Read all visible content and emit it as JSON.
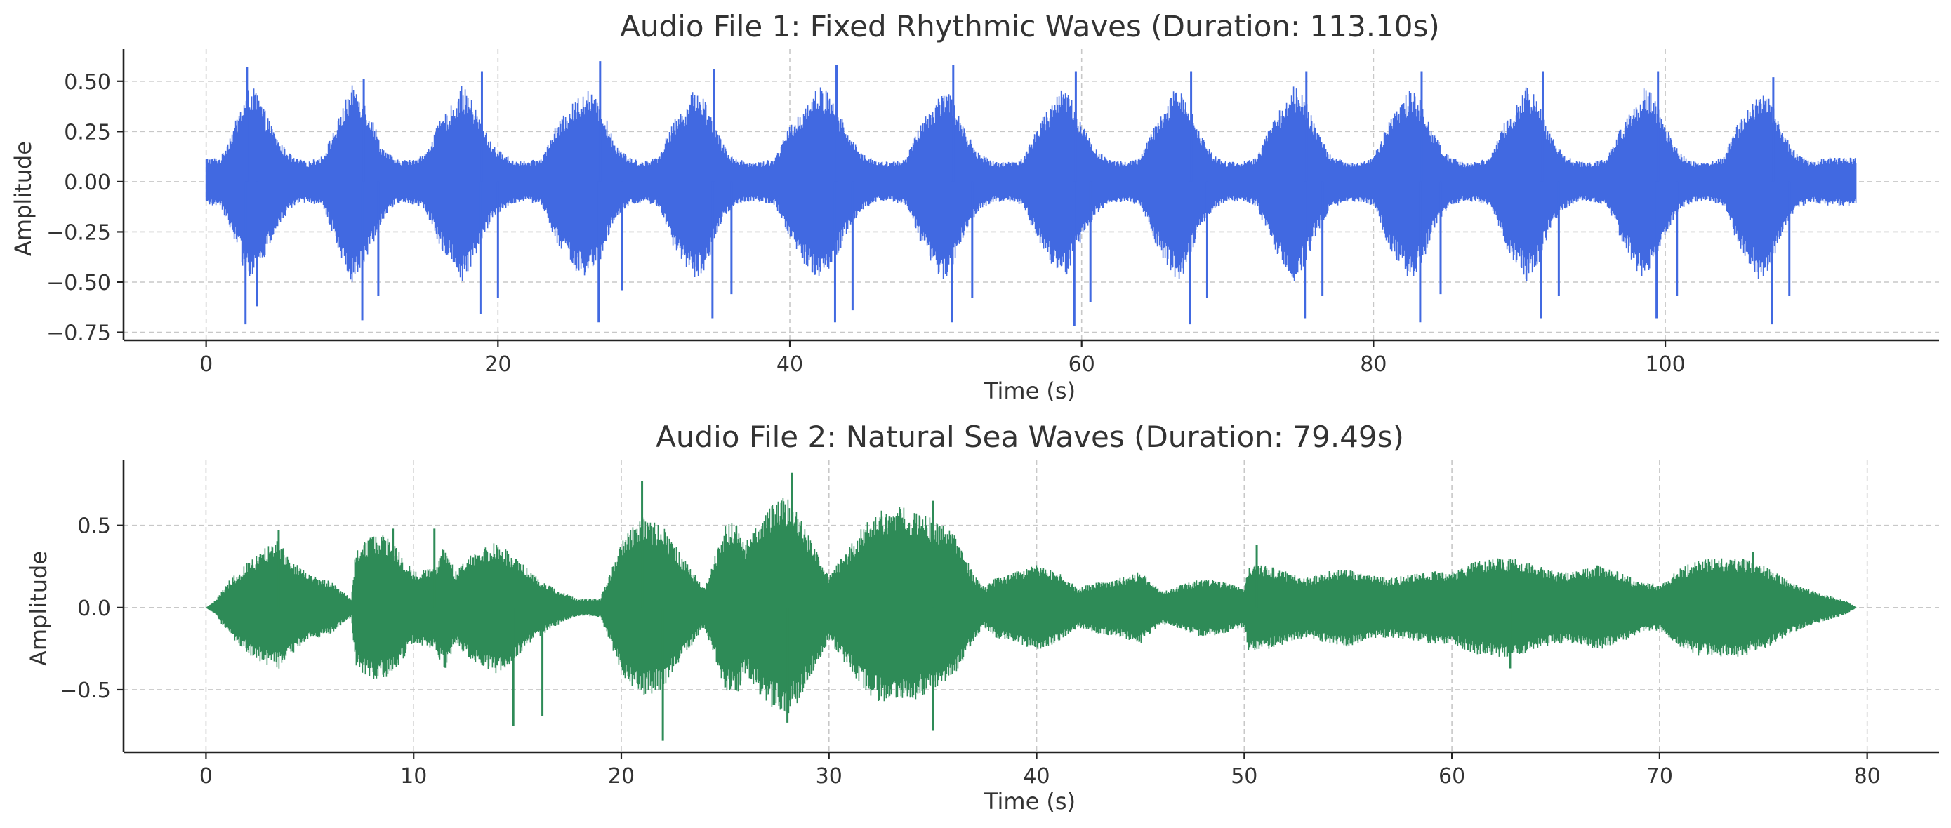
{
  "chart_data": [
    {
      "type": "line",
      "title": "Audio File 1: Fixed Rhythmic Waves (Duration: 113.10s)",
      "xlabel": "Time (s)",
      "ylabel": "Amplitude",
      "xlim": [
        -5.66,
        118.76
      ],
      "ylim": [
        -0.79,
        0.66
      ],
      "xticks": [
        0,
        20,
        40,
        60,
        80,
        100
      ],
      "xtick_labels": [
        "0",
        "20",
        "40",
        "60",
        "80",
        "100"
      ],
      "yticks": [
        0.5,
        0.25,
        0.0,
        -0.25,
        -0.5,
        -0.75
      ],
      "ytick_labels": [
        "0.50",
        "0.25",
        "0.00",
        "−0.25",
        "−0.50",
        "−0.75"
      ],
      "grid": true,
      "color": "#4169E1",
      "series": [
        {
          "x": [
            0,
            1,
            2,
            2.5,
            3,
            3.5,
            4,
            5,
            6,
            7,
            8,
            9,
            9.5,
            10,
            10.5,
            11,
            11.5,
            12,
            13,
            14,
            15,
            16,
            17,
            17.5,
            18,
            18.5,
            19,
            19.5,
            20,
            21,
            22,
            23,
            24,
            25,
            26,
            26.5,
            27,
            27.5,
            28,
            29,
            30,
            31,
            32,
            33,
            33.5,
            34,
            34.5,
            35,
            35.5,
            36,
            37,
            38,
            39,
            40,
            41,
            42,
            42.5,
            43,
            43.5,
            44,
            45,
            46,
            47,
            48,
            49,
            50,
            50.5,
            51,
            51.5,
            52,
            53,
            54,
            55,
            56,
            57,
            58,
            58.5,
            59,
            59.5,
            60,
            61,
            62,
            63,
            64,
            65,
            66,
            66.5,
            67,
            67.5,
            68,
            69,
            70,
            71,
            72,
            73,
            74,
            74.5,
            75,
            75.5,
            76,
            77,
            78,
            79,
            80,
            81,
            82,
            82.5,
            83,
            83.5,
            84,
            85,
            86,
            87,
            88,
            89,
            90,
            90.5,
            91,
            91.5,
            92,
            93,
            94,
            95,
            96,
            97,
            98,
            98.5,
            99,
            99.5,
            100,
            101,
            102,
            103,
            104,
            105,
            106,
            106.5,
            107,
            107.5,
            108,
            109,
            110,
            111,
            112,
            113.1
          ],
          "upper": [
            0.12,
            0.12,
            0.3,
            0.4,
            0.48,
            0.45,
            0.36,
            0.2,
            0.12,
            0.1,
            0.13,
            0.3,
            0.4,
            0.48,
            0.45,
            0.38,
            0.3,
            0.18,
            0.11,
            0.11,
            0.14,
            0.3,
            0.4,
            0.48,
            0.44,
            0.36,
            0.28,
            0.2,
            0.16,
            0.11,
            0.1,
            0.12,
            0.28,
            0.38,
            0.47,
            0.44,
            0.38,
            0.3,
            0.2,
            0.12,
            0.1,
            0.13,
            0.3,
            0.4,
            0.47,
            0.44,
            0.36,
            0.26,
            0.18,
            0.13,
            0.1,
            0.1,
            0.12,
            0.28,
            0.38,
            0.48,
            0.46,
            0.4,
            0.33,
            0.24,
            0.14,
            0.1,
            0.1,
            0.12,
            0.3,
            0.4,
            0.48,
            0.44,
            0.36,
            0.26,
            0.14,
            0.1,
            0.1,
            0.12,
            0.28,
            0.4,
            0.48,
            0.46,
            0.38,
            0.3,
            0.16,
            0.11,
            0.1,
            0.12,
            0.28,
            0.4,
            0.49,
            0.45,
            0.36,
            0.26,
            0.14,
            0.1,
            0.1,
            0.12,
            0.3,
            0.4,
            0.48,
            0.46,
            0.38,
            0.28,
            0.14,
            0.1,
            0.1,
            0.12,
            0.3,
            0.4,
            0.48,
            0.44,
            0.36,
            0.26,
            0.14,
            0.1,
            0.1,
            0.12,
            0.3,
            0.4,
            0.48,
            0.44,
            0.36,
            0.26,
            0.14,
            0.1,
            0.1,
            0.12,
            0.28,
            0.4,
            0.48,
            0.46,
            0.38,
            0.28,
            0.14,
            0.1,
            0.1,
            0.12,
            0.3,
            0.4,
            0.46,
            0.44,
            0.36,
            0.26,
            0.14,
            0.1,
            0.12,
            0.12,
            0.12
          ],
          "lower": [
            -0.12,
            -0.12,
            -0.3,
            -0.42,
            -0.48,
            -0.45,
            -0.38,
            -0.22,
            -0.12,
            -0.1,
            -0.13,
            -0.32,
            -0.44,
            -0.5,
            -0.46,
            -0.38,
            -0.3,
            -0.2,
            -0.11,
            -0.11,
            -0.14,
            -0.32,
            -0.44,
            -0.5,
            -0.46,
            -0.38,
            -0.28,
            -0.2,
            -0.16,
            -0.11,
            -0.1,
            -0.12,
            -0.3,
            -0.42,
            -0.5,
            -0.46,
            -0.4,
            -0.3,
            -0.2,
            -0.12,
            -0.1,
            -0.13,
            -0.32,
            -0.44,
            -0.5,
            -0.46,
            -0.38,
            -0.26,
            -0.18,
            -0.13,
            -0.1,
            -0.1,
            -0.12,
            -0.3,
            -0.42,
            -0.5,
            -0.46,
            -0.4,
            -0.33,
            -0.24,
            -0.14,
            -0.1,
            -0.1,
            -0.12,
            -0.32,
            -0.44,
            -0.5,
            -0.46,
            -0.38,
            -0.26,
            -0.14,
            -0.1,
            -0.1,
            -0.12,
            -0.3,
            -0.44,
            -0.5,
            -0.46,
            -0.38,
            -0.3,
            -0.16,
            -0.11,
            -0.1,
            -0.12,
            -0.3,
            -0.44,
            -0.5,
            -0.46,
            -0.38,
            -0.26,
            -0.14,
            -0.1,
            -0.1,
            -0.12,
            -0.32,
            -0.44,
            -0.5,
            -0.46,
            -0.38,
            -0.28,
            -0.14,
            -0.1,
            -0.1,
            -0.12,
            -0.32,
            -0.44,
            -0.5,
            -0.46,
            -0.38,
            -0.26,
            -0.14,
            -0.1,
            -0.1,
            -0.12,
            -0.32,
            -0.44,
            -0.5,
            -0.46,
            -0.38,
            -0.26,
            -0.14,
            -0.1,
            -0.1,
            -0.12,
            -0.3,
            -0.44,
            -0.5,
            -0.46,
            -0.38,
            -0.28,
            -0.14,
            -0.1,
            -0.1,
            -0.12,
            -0.32,
            -0.44,
            -0.5,
            -0.46,
            -0.38,
            -0.26,
            -0.14,
            -0.1,
            -0.12,
            -0.12,
            -0.12
          ]
        }
      ],
      "spikes": [
        {
          "x": 2.8,
          "y": 0.57
        },
        {
          "x": 2.7,
          "y": -0.71
        },
        {
          "x": 3.5,
          "y": -0.62
        },
        {
          "x": 10.8,
          "y": 0.51
        },
        {
          "x": 10.7,
          "y": -0.69
        },
        {
          "x": 11.8,
          "y": -0.57
        },
        {
          "x": 18.9,
          "y": 0.55
        },
        {
          "x": 18.8,
          "y": -0.66
        },
        {
          "x": 20.0,
          "y": -0.58
        },
        {
          "x": 27.0,
          "y": 0.6
        },
        {
          "x": 26.9,
          "y": -0.7
        },
        {
          "x": 28.5,
          "y": -0.54
        },
        {
          "x": 34.8,
          "y": 0.56
        },
        {
          "x": 34.7,
          "y": -0.68
        },
        {
          "x": 36.0,
          "y": -0.56
        },
        {
          "x": 43.2,
          "y": 0.58
        },
        {
          "x": 43.1,
          "y": -0.7
        },
        {
          "x": 44.3,
          "y": -0.64
        },
        {
          "x": 51.2,
          "y": 0.58
        },
        {
          "x": 51.1,
          "y": -0.7
        },
        {
          "x": 52.5,
          "y": -0.58
        },
        {
          "x": 59.6,
          "y": 0.55
        },
        {
          "x": 59.5,
          "y": -0.72
        },
        {
          "x": 60.6,
          "y": -0.6
        },
        {
          "x": 67.5,
          "y": 0.55
        },
        {
          "x": 67.4,
          "y": -0.71
        },
        {
          "x": 68.6,
          "y": -0.58
        },
        {
          "x": 75.4,
          "y": 0.55
        },
        {
          "x": 75.3,
          "y": -0.68
        },
        {
          "x": 76.5,
          "y": -0.57
        },
        {
          "x": 83.3,
          "y": 0.55
        },
        {
          "x": 83.2,
          "y": -0.7
        },
        {
          "x": 84.6,
          "y": -0.56
        },
        {
          "x": 91.6,
          "y": 0.55
        },
        {
          "x": 91.5,
          "y": -0.68
        },
        {
          "x": 92.7,
          "y": -0.57
        },
        {
          "x": 99.5,
          "y": 0.55
        },
        {
          "x": 99.4,
          "y": -0.68
        },
        {
          "x": 100.8,
          "y": -0.57
        },
        {
          "x": 107.4,
          "y": 0.52
        },
        {
          "x": 107.3,
          "y": -0.71
        },
        {
          "x": 108.5,
          "y": -0.57
        }
      ]
    },
    {
      "type": "line",
      "title": "Audio File 2: Natural Sea Waves (Duration: 79.49s)",
      "xlabel": "Time (s)",
      "ylabel": "Amplitude",
      "xlim": [
        -3.97,
        83.46
      ],
      "ylim": [
        -0.88,
        0.9
      ],
      "xticks": [
        0,
        10,
        20,
        30,
        40,
        50,
        60,
        70,
        80
      ],
      "xtick_labels": [
        "0",
        "10",
        "20",
        "30",
        "40",
        "50",
        "60",
        "70",
        "80"
      ],
      "yticks": [
        0.5,
        0.0,
        -0.5
      ],
      "ytick_labels": [
        "0.5",
        "0.0",
        "−0.5"
      ],
      "grid": true,
      "color": "#2E8B57",
      "series": [
        {
          "x": [
            0,
            0.5,
            1,
            2,
            3,
            3.5,
            4,
            5,
            6,
            7,
            7.2,
            7.5,
            8,
            8.5,
            9,
            10,
            11,
            11.5,
            12,
            13,
            14,
            15,
            16,
            17,
            18,
            19,
            20,
            20.5,
            21,
            22,
            23,
            24,
            25,
            25.5,
            26,
            27,
            28,
            28.5,
            29,
            30,
            31,
            32,
            33,
            34,
            35,
            36,
            37,
            37.5,
            38,
            39,
            40,
            41,
            42,
            43,
            44,
            45,
            46,
            47,
            48,
            49,
            50,
            50.2,
            51,
            52,
            53,
            54,
            55,
            56,
            57,
            58,
            59,
            60,
            61,
            62,
            63,
            64,
            65,
            66,
            67,
            68,
            69,
            70,
            71,
            72,
            73,
            74,
            75,
            76,
            77,
            78,
            79,
            79.49
          ],
          "upper": [
            0.0,
            0.05,
            0.15,
            0.28,
            0.38,
            0.42,
            0.3,
            0.2,
            0.16,
            0.06,
            0.35,
            0.4,
            0.44,
            0.45,
            0.4,
            0.22,
            0.25,
            0.38,
            0.22,
            0.35,
            0.4,
            0.3,
            0.18,
            0.1,
            0.05,
            0.06,
            0.4,
            0.5,
            0.55,
            0.5,
            0.3,
            0.12,
            0.5,
            0.55,
            0.4,
            0.62,
            0.68,
            0.6,
            0.45,
            0.2,
            0.38,
            0.56,
            0.62,
            0.6,
            0.55,
            0.45,
            0.2,
            0.12,
            0.18,
            0.22,
            0.26,
            0.22,
            0.12,
            0.16,
            0.18,
            0.22,
            0.1,
            0.14,
            0.18,
            0.16,
            0.12,
            0.26,
            0.26,
            0.22,
            0.18,
            0.22,
            0.24,
            0.2,
            0.18,
            0.2,
            0.22,
            0.22,
            0.28,
            0.3,
            0.3,
            0.26,
            0.22,
            0.22,
            0.26,
            0.22,
            0.16,
            0.14,
            0.24,
            0.3,
            0.3,
            0.3,
            0.26,
            0.18,
            0.12,
            0.08,
            0.04,
            0.0
          ],
          "lower": [
            0.0,
            -0.05,
            -0.15,
            -0.28,
            -0.36,
            -0.38,
            -0.3,
            -0.2,
            -0.16,
            -0.06,
            -0.35,
            -0.42,
            -0.44,
            -0.44,
            -0.4,
            -0.22,
            -0.25,
            -0.38,
            -0.22,
            -0.35,
            -0.42,
            -0.3,
            -0.18,
            -0.1,
            -0.05,
            -0.06,
            -0.4,
            -0.5,
            -0.55,
            -0.5,
            -0.3,
            -0.12,
            -0.5,
            -0.55,
            -0.4,
            -0.6,
            -0.66,
            -0.58,
            -0.45,
            -0.2,
            -0.38,
            -0.55,
            -0.6,
            -0.58,
            -0.52,
            -0.42,
            -0.2,
            -0.12,
            -0.18,
            -0.22,
            -0.26,
            -0.22,
            -0.12,
            -0.16,
            -0.18,
            -0.22,
            -0.1,
            -0.14,
            -0.18,
            -0.16,
            -0.12,
            -0.26,
            -0.26,
            -0.22,
            -0.18,
            -0.22,
            -0.24,
            -0.2,
            -0.18,
            -0.2,
            -0.22,
            -0.22,
            -0.28,
            -0.3,
            -0.3,
            -0.26,
            -0.22,
            -0.22,
            -0.26,
            -0.22,
            -0.16,
            -0.14,
            -0.24,
            -0.3,
            -0.3,
            -0.3,
            -0.26,
            -0.18,
            -0.12,
            -0.08,
            -0.04,
            0.0
          ]
        }
      ],
      "spikes": [
        {
          "x": 3.5,
          "y": 0.47
        },
        {
          "x": 9.0,
          "y": 0.48
        },
        {
          "x": 11.0,
          "y": 0.48
        },
        {
          "x": 14.8,
          "y": -0.72
        },
        {
          "x": 16.2,
          "y": -0.66
        },
        {
          "x": 21.0,
          "y": 0.77
        },
        {
          "x": 22.0,
          "y": -0.81
        },
        {
          "x": 28.2,
          "y": 0.82
        },
        {
          "x": 28.0,
          "y": -0.7
        },
        {
          "x": 35.0,
          "y": 0.65
        },
        {
          "x": 35.0,
          "y": -0.75
        },
        {
          "x": 50.6,
          "y": 0.38
        },
        {
          "x": 62.8,
          "y": -0.37
        },
        {
          "x": 74.5,
          "y": 0.34
        }
      ]
    }
  ]
}
